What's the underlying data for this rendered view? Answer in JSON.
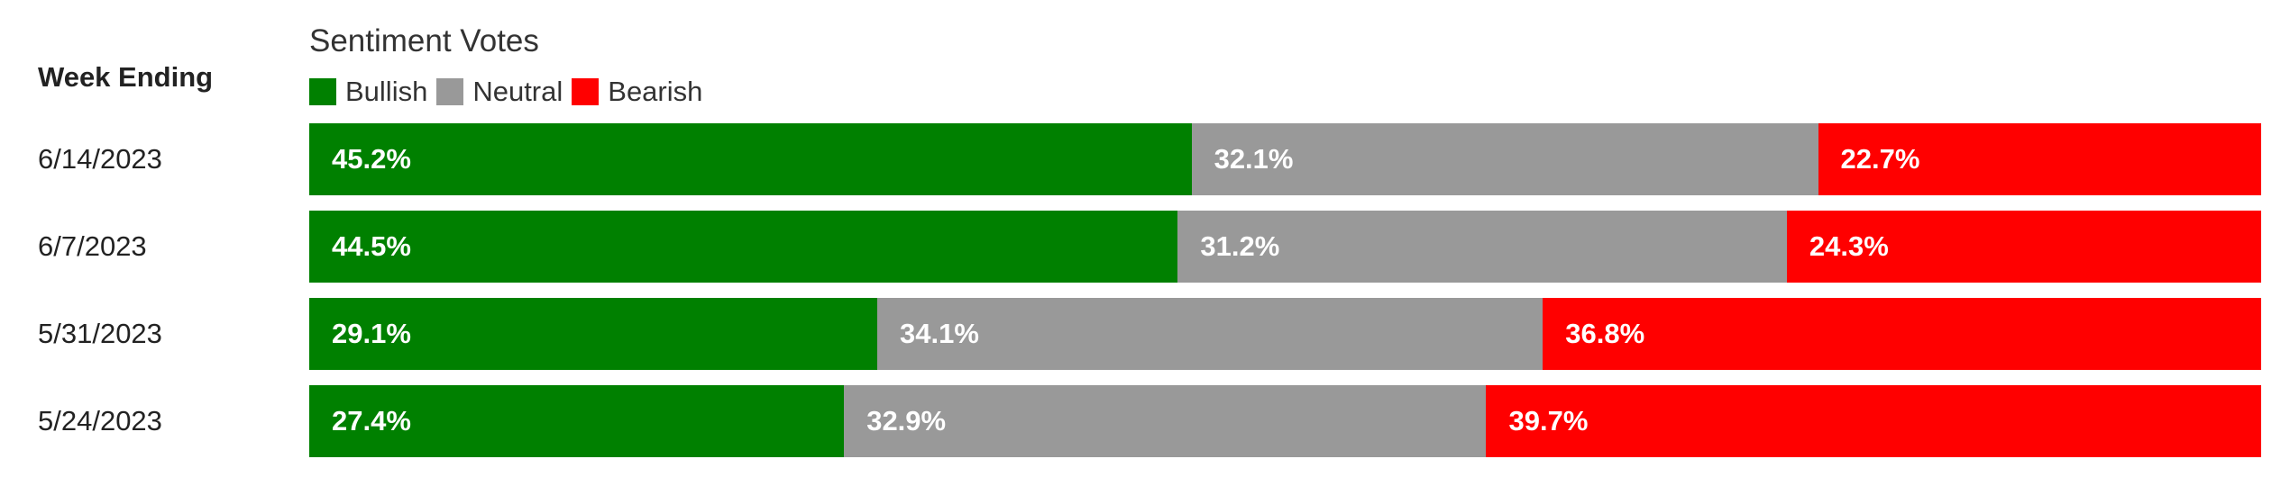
{
  "chart_data": {
    "type": "bar",
    "orientation": "horizontal",
    "stacked": true,
    "normalized": true,
    "title": "Sentiment Votes",
    "category_header": "Week Ending",
    "legend_position": "top-left",
    "categories": [
      "6/14/2023",
      "6/7/2023",
      "5/31/2023",
      "5/24/2023"
    ],
    "series": [
      {
        "name": "Bullish",
        "color": "#008000",
        "values": [
          45.2,
          44.5,
          29.1,
          27.4
        ],
        "labels": [
          "45.2%",
          "44.5%",
          "29.1%",
          "27.4%"
        ]
      },
      {
        "name": "Neutral",
        "color": "#999999",
        "values": [
          32.1,
          31.2,
          34.1,
          32.9
        ],
        "labels": [
          "32.1%",
          "31.2%",
          "34.1%",
          "32.9%"
        ]
      },
      {
        "name": "Bearish",
        "color": "#ff0000",
        "values": [
          22.7,
          24.3,
          36.8,
          39.7
        ],
        "labels": [
          "22.7%",
          "24.3%",
          "36.8%",
          "39.7%"
        ]
      }
    ],
    "grid": false
  }
}
